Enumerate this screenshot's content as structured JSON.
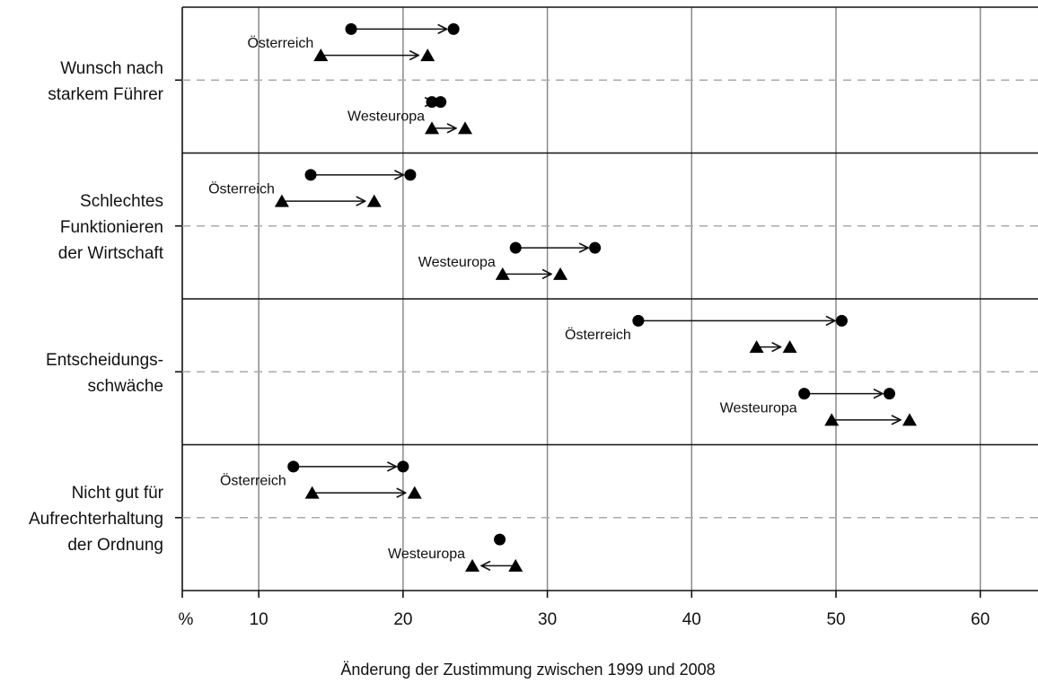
{
  "chart_data": {
    "type": "scatter",
    "xlabel": "Änderung der Zustimmung zwischen 1999 und 2008",
    "x_unit_label": "%",
    "xlim": [
      4.7,
      64
    ],
    "xticks": [
      10,
      20,
      30,
      40,
      50,
      60
    ],
    "grid": true,
    "categories": [
      {
        "lines": [
          "Wunsch nach",
          "starkem Führer"
        ],
        "groups": [
          {
            "label": "Österreich",
            "circle": {
              "from": 16.4,
              "to": 23.5
            },
            "triangle": {
              "from": 14.3,
              "to": 21.7
            }
          },
          {
            "label": "Westeuropa",
            "circle": {
              "from": 22.0,
              "to": 22.6
            },
            "triangle": {
              "from": 22.0,
              "to": 24.3
            }
          }
        ]
      },
      {
        "lines": [
          "Schlechtes",
          "Funktionieren",
          "der Wirtschaft"
        ],
        "groups": [
          {
            "label": "Österreich",
            "circle": {
              "from": 13.6,
              "to": 20.5
            },
            "triangle": {
              "from": 11.6,
              "to": 18.0
            }
          },
          {
            "label": "Westeuropa",
            "circle": {
              "from": 27.8,
              "to": 33.3
            },
            "triangle": {
              "from": 26.9,
              "to": 30.9
            }
          }
        ]
      },
      {
        "lines": [
          "Entscheidungs-",
          "schwäche"
        ],
        "groups": [
          {
            "label": "Österreich",
            "circle": {
              "from": 36.3,
              "to": 50.4
            },
            "triangle": {
              "from": 44.5,
              "to": 46.8
            }
          },
          {
            "label": "Westeuropa",
            "circle": {
              "from": 47.8,
              "to": 53.7
            },
            "triangle": {
              "from": 49.7,
              "to": 55.1
            }
          }
        ]
      },
      {
        "lines": [
          "Nicht gut für",
          "Aufrechterhaltung",
          "der Ordnung"
        ],
        "groups": [
          {
            "label": "Österreich",
            "circle": {
              "from": 12.4,
              "to": 20.0
            },
            "triangle": {
              "from": 13.7,
              "to": 20.8
            }
          },
          {
            "label": "Westeuropa",
            "circle": {
              "from": 26.7,
              "to": 26.7
            },
            "triangle": {
              "from": 27.8,
              "to": 24.8
            }
          }
        ]
      }
    ]
  }
}
